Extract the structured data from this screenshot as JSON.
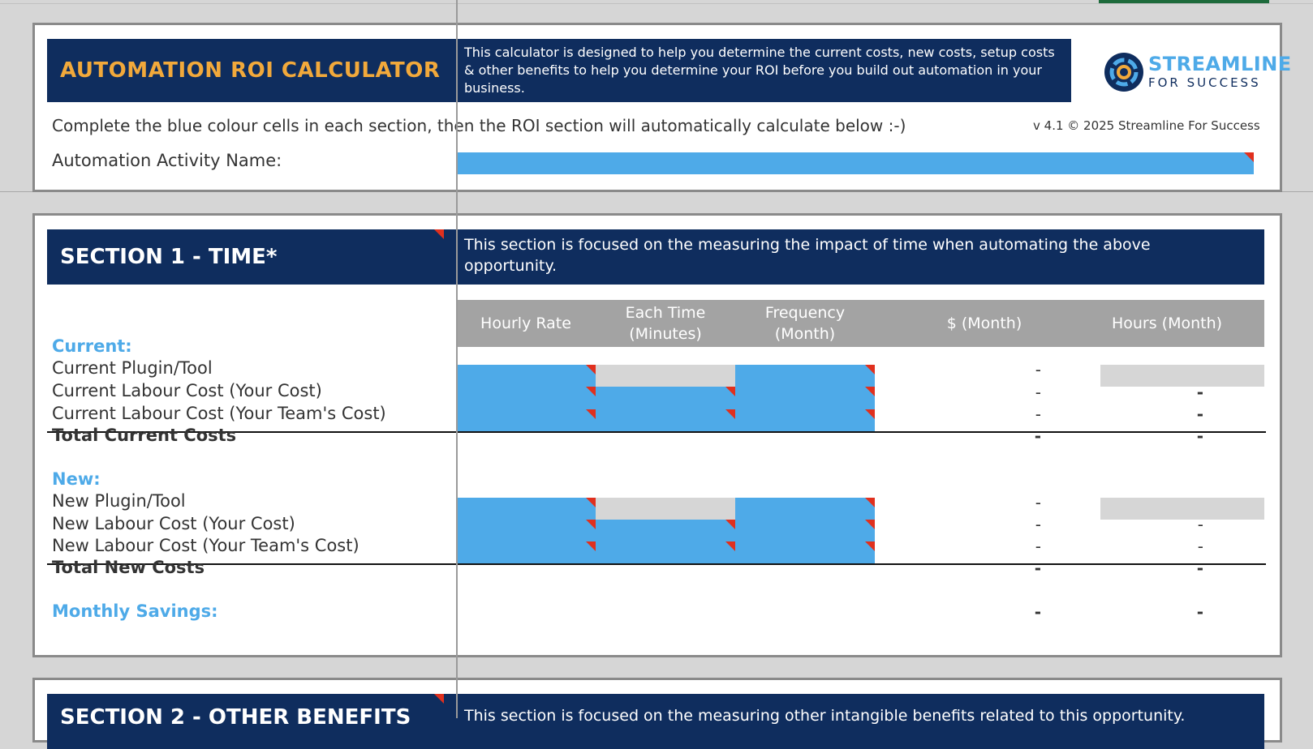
{
  "header": {
    "title": "AUTOMATION ROI CALCULATOR",
    "description": "This calculator is designed to help you determine the current costs, new costs, setup costs & other benefits to help you determine your ROI before you build out automation in your business.",
    "logo_main": "STREAMLINE",
    "logo_sub": "FOR SUCCESS",
    "instructions": "Complete the blue colour cells in each section, then the ROI section will automatically calculate below :-)",
    "version": "v 4.1 © 2025 Streamline For Success",
    "activity_label": "Automation Activity Name:",
    "activity_value": ""
  },
  "section1": {
    "title": "SECTION 1 - TIME*",
    "description": "This section is focused on the measuring the impact of time when automating the above opportunity.",
    "columns": [
      "Hourly Rate",
      "Each Time\n(Minutes)",
      "Frequency\n(Month)",
      "$ (Month)",
      "Hours (Month)"
    ],
    "current_label": "Current:",
    "current_rows": [
      {
        "label": "Current Plugin/Tool",
        "dollar": "-",
        "hours": ""
      },
      {
        "label": "Current Labour Cost (Your Cost)",
        "dollar": "-",
        "hours": "-"
      },
      {
        "label": "Current Labour Cost (Your Team's Cost)",
        "dollar": "-",
        "hours": "-"
      }
    ],
    "total_current": {
      "label": "Total Current Costs",
      "dollar": "-",
      "hours": "-"
    },
    "new_label": "New:",
    "new_rows": [
      {
        "label": "New Plugin/Tool",
        "dollar": "-",
        "hours": ""
      },
      {
        "label": "New Labour Cost (Your Cost)",
        "dollar": "-",
        "hours": "-"
      },
      {
        "label": "New Labour Cost (Your Team's Cost)",
        "dollar": "-",
        "hours": "-"
      }
    ],
    "total_new": {
      "label": "Total New Costs",
      "dollar": "-",
      "hours": "-"
    },
    "savings": {
      "label": "Monthly Savings:",
      "dollar": "-",
      "hours": "-"
    }
  },
  "section2": {
    "title": "SECTION 2 - OTHER BENEFITS",
    "description": "This section is focused on the measuring other intangible benefits related to this opportunity."
  },
  "colors": {
    "navy": "#0f2d5e",
    "input_blue": "#4eaae8",
    "title_gold": "#f2a93b",
    "locked_grey": "#d6d6d6",
    "note_red": "#e0301e"
  }
}
